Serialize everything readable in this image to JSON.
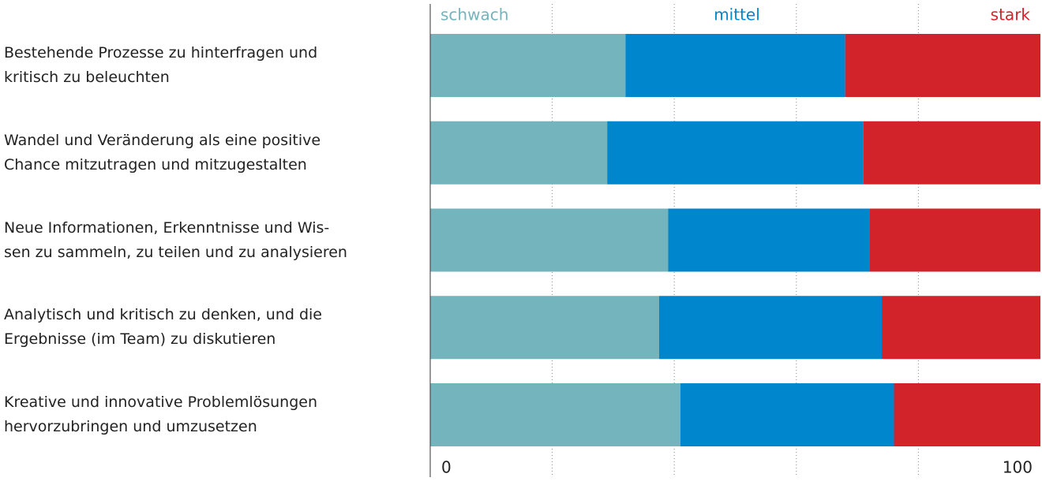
{
  "chart_data": {
    "type": "stacked_barh",
    "categories": [
      "Bestehende Prozesse zu hinterfragen und\nkritisch zu beleuchten",
      "Wandel und Veränderung als eine positive\nChance mitzutragen und mitzugestalten",
      "Neue Informationen, Erkenntnisse und Wis-\nsen zu sammeln, zu teilen und zu analysieren",
      "Analytisch und kritisch zu denken, und die\nErgebnisse (im Team) zu diskutieren",
      "Kreative und innovative Problemlösungen\nhervorzubringen und umzusetzen"
    ],
    "series": [
      {
        "name": "schwach",
        "color": "#73b4bd",
        "values": [
          32,
          29,
          39,
          37.5,
          41
        ]
      },
      {
        "name": "mittel",
        "color": "#0086cc",
        "values": [
          36,
          42,
          33,
          36.5,
          35
        ]
      },
      {
        "name": "stark",
        "color": "#d2232a",
        "values": [
          32,
          29,
          28,
          26,
          24
        ]
      }
    ],
    "xlim": [
      0,
      100
    ],
    "xticks": [
      0,
      100
    ],
    "minor_xticks": [
      20,
      40,
      60,
      80
    ],
    "grid": true
  }
}
